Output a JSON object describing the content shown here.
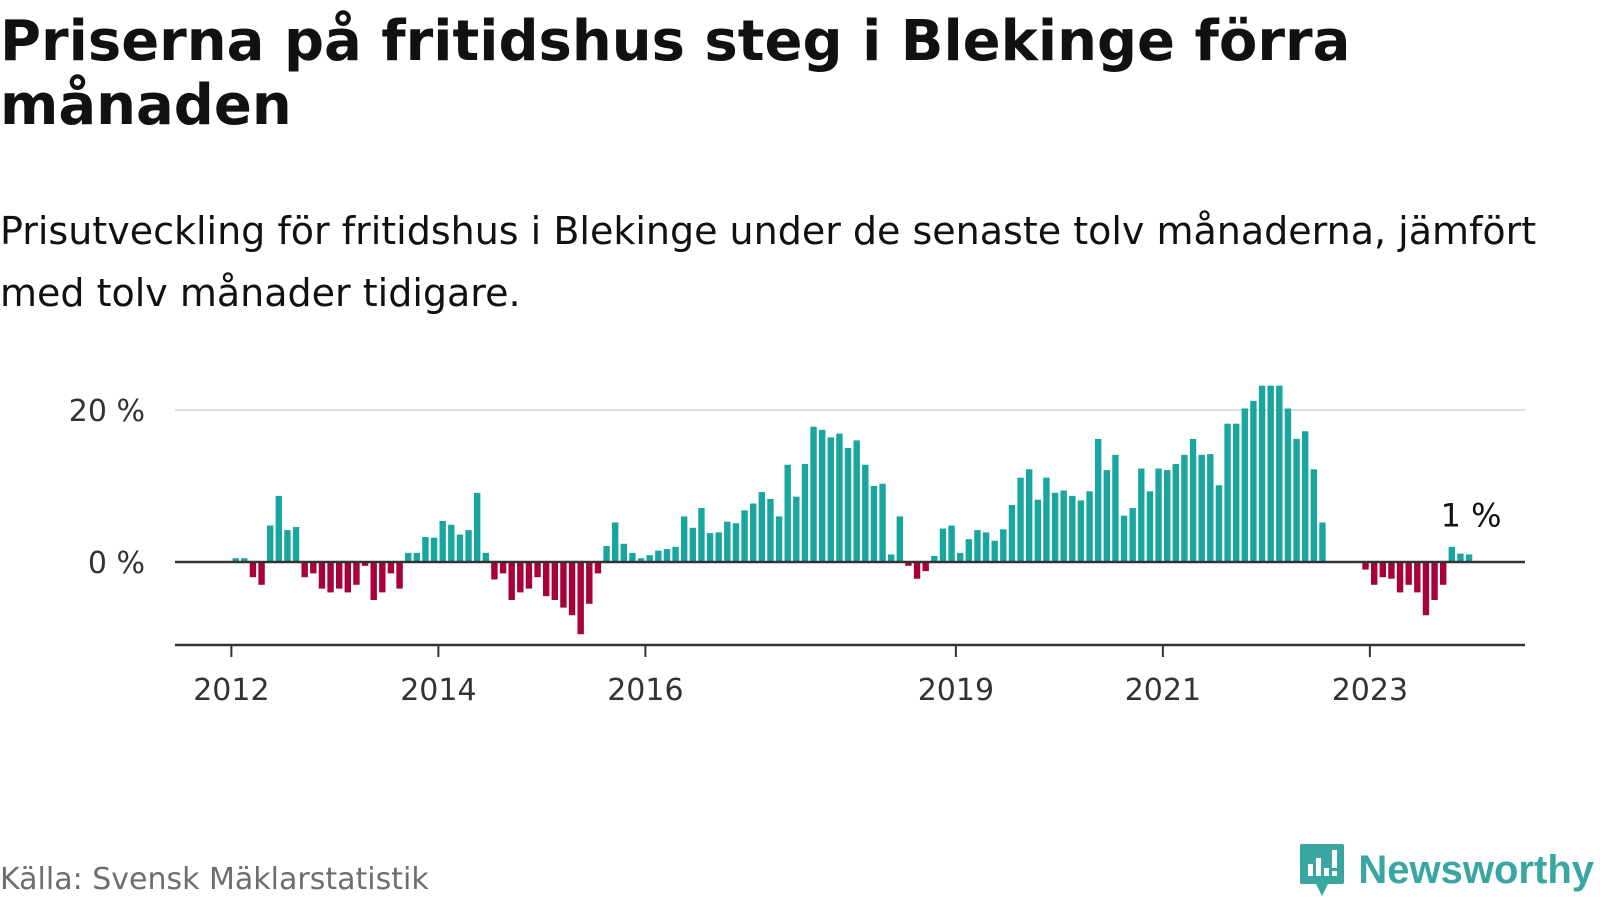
{
  "header": {
    "title": "Priserna på fritidshus steg i Blekinge förra månaden",
    "subtitle": "Prisutveckling för fritidshus i Blekinge under de senaste tolv månaderna, jämfört med tolv månader tidigare."
  },
  "footer": {
    "source": "Källa: Svensk Mäklarstatistik",
    "brand": "Newsworthy",
    "brand_icon": "newsworthy-logo-icon"
  },
  "colors": {
    "positive": "#1aa6a0",
    "negative": "#a8003b",
    "gridline": "#dddddd",
    "axis": "#333333"
  },
  "chart_data": {
    "type": "bar",
    "title": "Priserna på fritidshus steg i Blekinge förra månaden",
    "xlabel": "",
    "ylabel": "",
    "unit": "%",
    "ylim": [
      -11,
      24
    ],
    "yticks": [
      {
        "value": 0,
        "label": "0 %"
      },
      {
        "value": 20,
        "label": "20 %"
      }
    ],
    "xticks": [
      {
        "label": "2012",
        "index": 0
      },
      {
        "label": "2014",
        "index": 24
      },
      {
        "label": "2016",
        "index": 48
      },
      {
        "label": "2019",
        "index": 84
      },
      {
        "label": "2021",
        "index": 108
      },
      {
        "label": "2023",
        "index": 132
      }
    ],
    "first_month": "2011-12",
    "grid": true,
    "legend": "none",
    "annotation": {
      "text": "1 %",
      "index": 143
    },
    "values": [
      0.5,
      0.5,
      -2,
      -3,
      4.8,
      8.7,
      4.2,
      4.6,
      -2,
      -1.5,
      -3.5,
      -4,
      -3.5,
      -4,
      -3,
      -0.5,
      -5,
      -4,
      -1.5,
      -3.5,
      1.2,
      1.2,
      3.3,
      3.2,
      5.4,
      4.9,
      3.6,
      4.2,
      9.1,
      1.2,
      -2.3,
      -1.5,
      -5,
      -4,
      -3.5,
      -2,
      -4.5,
      -5,
      -6,
      -7,
      -9.5,
      -5.5,
      -1.5,
      2.1,
      5.2,
      2.4,
      1.2,
      0.5,
      0.9,
      1.5,
      1.7,
      2,
      6,
      4.5,
      7.1,
      3.8,
      3.9,
      5.3,
      5.1,
      6.8,
      7.7,
      9.2,
      8.3,
      6,
      12.8,
      8.6,
      12.9,
      17.8,
      17.4,
      16.4,
      16.9,
      15,
      16,
      12.8,
      10,
      10.3,
      1,
      6,
      -0.5,
      -2.2,
      -1.2,
      0.8,
      4.4,
      4.8,
      1.2,
      3,
      4.2,
      3.9,
      2.8,
      4.3,
      7.5,
      11.1,
      12.2,
      8.2,
      11.1,
      9.1,
      9.4,
      8.7,
      8.1,
      9.3,
      16.2,
      12.1,
      14.1,
      6.1,
      7.1,
      12.3,
      9.3,
      12.3,
      12.1,
      12.9,
      14.1,
      16.2,
      14.1,
      14.2,
      10.1,
      18.2,
      18.2,
      20.2,
      21.2,
      23.2,
      23.2,
      23.2,
      20.2,
      16.2,
      17.2,
      12.2,
      5.2,
      0,
      0,
      0,
      0,
      -1,
      -3,
      -2,
      -2.2,
      -4,
      -3,
      -4,
      -7,
      -5,
      -3,
      2,
      1.1,
      1
    ]
  }
}
